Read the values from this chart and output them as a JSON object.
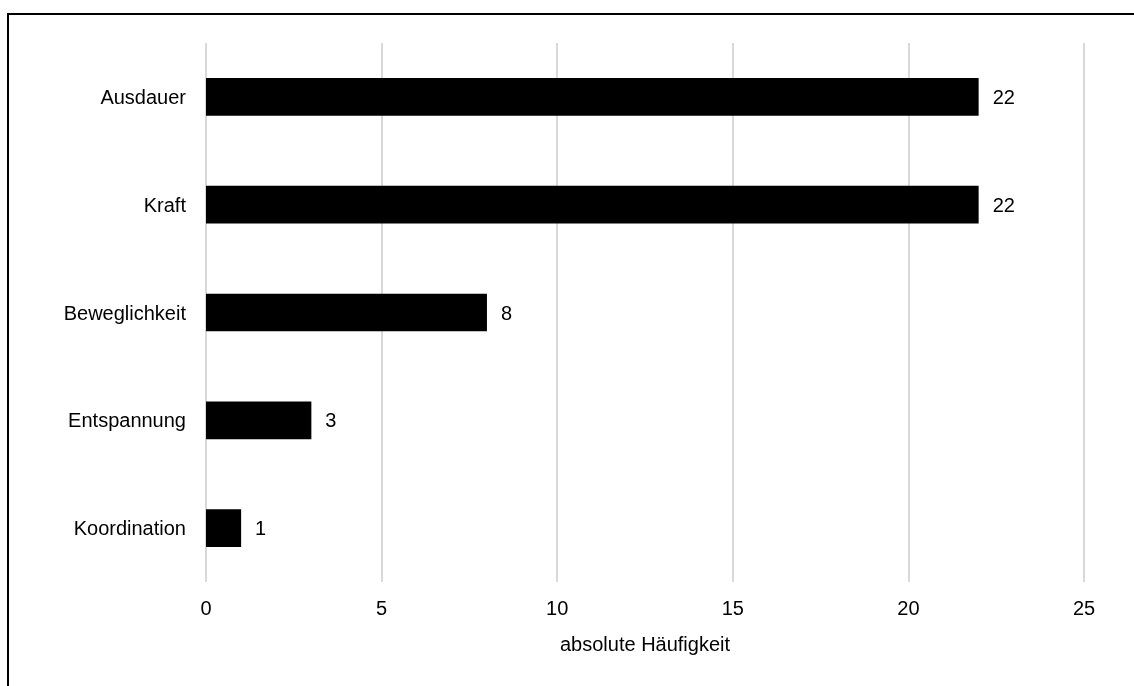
{
  "chart_data": {
    "type": "bar",
    "orientation": "horizontal",
    "xlabel": "absolute Häufigkeit",
    "categories": [
      "Ausdauer",
      "Kraft",
      "Beweglichkeit",
      "Entspannung",
      "Koordination"
    ],
    "values": [
      22,
      22,
      8,
      3,
      1
    ],
    "color": "#000000",
    "data_labels": true,
    "xlim": [
      0,
      25
    ],
    "xticks": [
      0,
      5,
      10,
      15,
      20,
      25
    ],
    "grid": "x"
  }
}
